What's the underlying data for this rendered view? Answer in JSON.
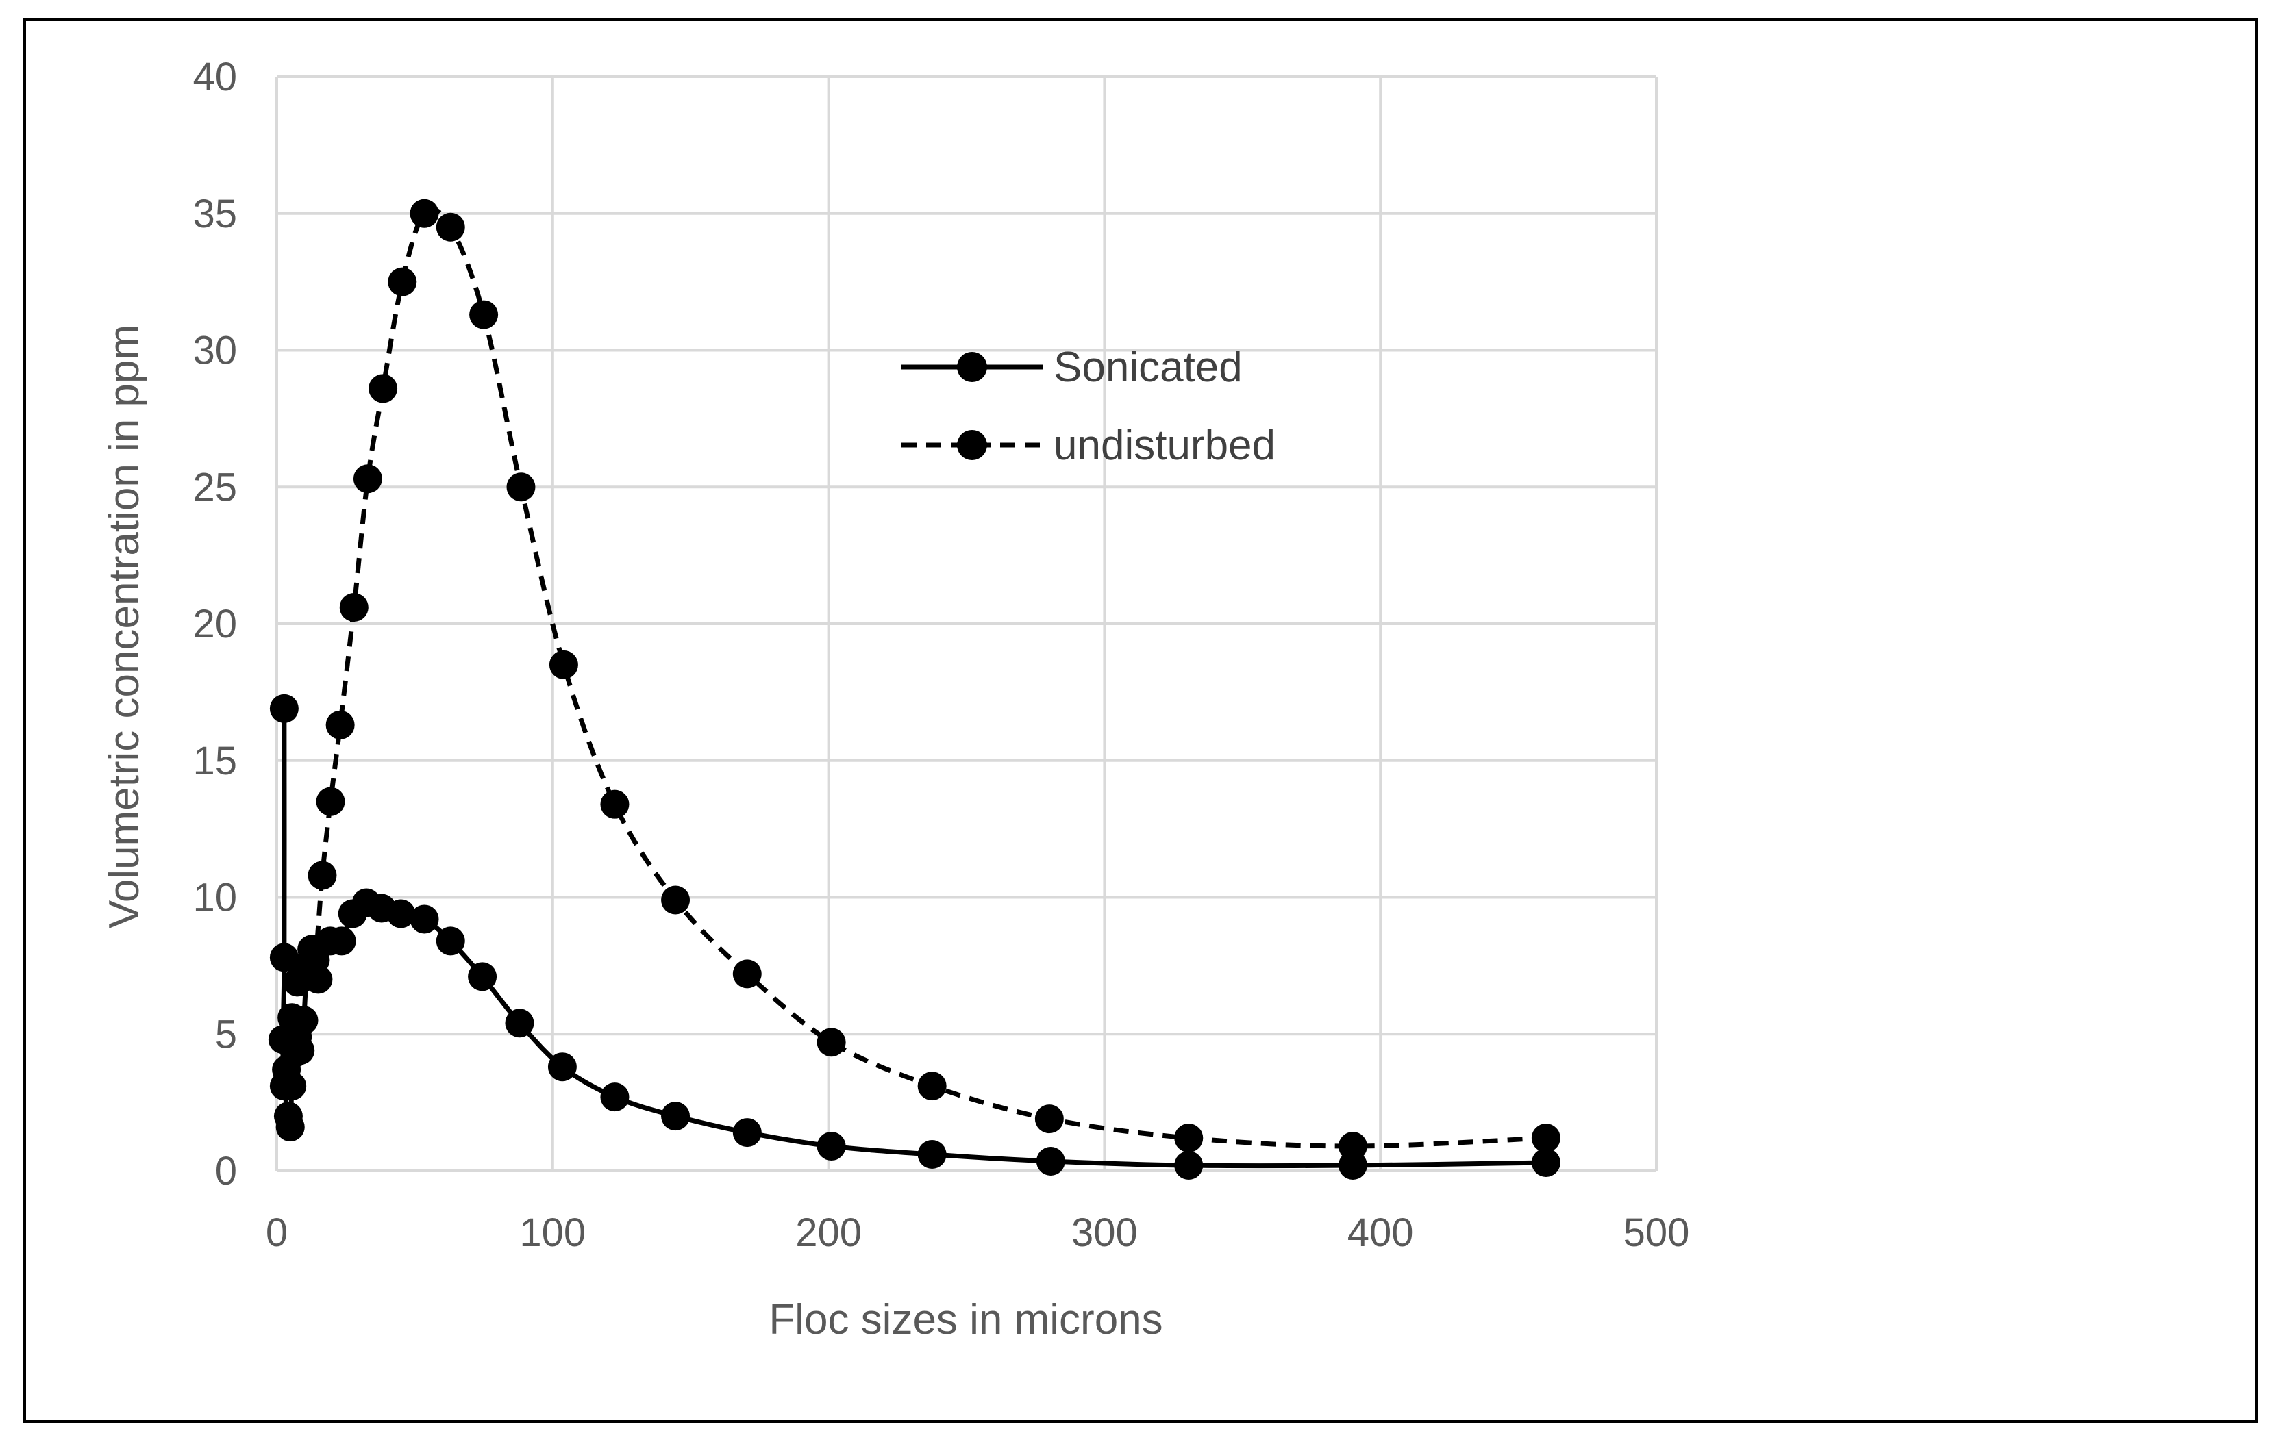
{
  "chart_data": {
    "type": "scatter",
    "title": "",
    "xlabel": "Floc sizes in microns",
    "ylabel": "Volumetric concentration in ppm",
    "xlim": [
      0,
      500
    ],
    "ylim": [
      0,
      40
    ],
    "xticks": [
      0,
      100,
      200,
      300,
      400,
      500
    ],
    "yticks": [
      0,
      5,
      10,
      15,
      20,
      25,
      30,
      35,
      40
    ],
    "grid": true,
    "legend_position": "top-center",
    "series": [
      {
        "name": "Sonicated",
        "line_style": "solid",
        "color": "#000000",
        "points": [
          [
            2.7,
            16.9
          ],
          [
            2.7,
            7.8
          ],
          [
            2.2,
            4.8
          ],
          [
            2.7,
            3.1
          ],
          [
            4.2,
            2.0
          ],
          [
            4.9,
            1.6
          ],
          [
            5.5,
            3.1
          ],
          [
            6.5,
            4.3
          ],
          [
            7.5,
            4.9
          ],
          [
            8.5,
            4.4
          ],
          [
            9.8,
            5.5
          ],
          [
            11.0,
            7.5
          ],
          [
            12.7,
            8.1
          ],
          [
            15.0,
            7.0
          ],
          [
            19.4,
            8.4
          ],
          [
            23.5,
            8.4
          ],
          [
            27.5,
            9.4
          ],
          [
            32.5,
            9.8
          ],
          [
            38.0,
            9.6
          ],
          [
            45.0,
            9.4
          ],
          [
            53.5,
            9.2
          ],
          [
            63.0,
            8.4
          ],
          [
            74.5,
            7.1
          ],
          [
            88.0,
            5.4
          ],
          [
            103.5,
            3.8
          ],
          [
            122.5,
            2.7
          ],
          [
            144.5,
            2.0
          ],
          [
            170.5,
            1.4
          ],
          [
            201.0,
            0.9
          ],
          [
            237.5,
            0.6
          ],
          [
            280.5,
            0.35
          ],
          [
            330.5,
            0.2
          ],
          [
            390.0,
            0.2
          ],
          [
            460.0,
            0.3
          ]
        ]
      },
      {
        "name": "undisturbed",
        "line_style": "dashed",
        "color": "#000000",
        "points": [
          [
            3.5,
            3.7
          ],
          [
            5.5,
            5.6
          ],
          [
            7.5,
            6.9
          ],
          [
            9.5,
            7.3
          ],
          [
            11.0,
            7.4
          ],
          [
            12.5,
            7.7
          ],
          [
            14.0,
            7.7
          ],
          [
            16.5,
            10.8
          ],
          [
            19.5,
            13.5
          ],
          [
            23.0,
            16.3
          ],
          [
            28.0,
            20.6
          ],
          [
            33.0,
            25.3
          ],
          [
            38.5,
            28.6
          ],
          [
            45.5,
            32.5
          ],
          [
            53.5,
            35.0
          ],
          [
            63.0,
            34.5
          ],
          [
            75.0,
            31.3
          ],
          [
            88.5,
            25.0
          ],
          [
            104.0,
            18.5
          ],
          [
            122.5,
            13.4
          ],
          [
            144.5,
            9.9
          ],
          [
            170.5,
            7.2
          ],
          [
            201.0,
            4.7
          ],
          [
            237.5,
            3.1
          ],
          [
            280.0,
            1.9
          ],
          [
            330.5,
            1.2
          ],
          [
            390.0,
            0.9
          ],
          [
            460.0,
            1.2
          ]
        ]
      }
    ]
  }
}
